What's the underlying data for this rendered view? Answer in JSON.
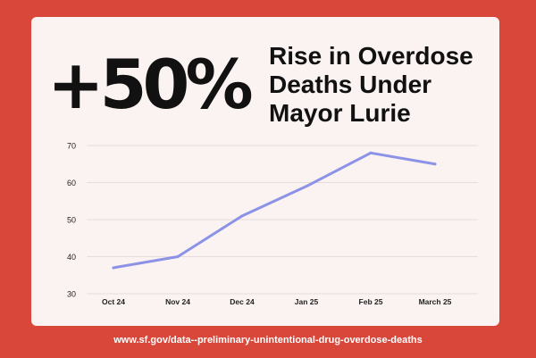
{
  "headline": {
    "stat": "+50%",
    "lines": [
      "Rise in Overdose",
      "Deaths Under",
      "Mayor Lurie"
    ]
  },
  "source": "www.sf.gov/data--preliminary-unintentional-drug-overdose-deaths",
  "colors": {
    "background": "#d9473b",
    "card": "#faf3f1",
    "line": "#8c93e6",
    "text": "#111111"
  },
  "chart_data": {
    "type": "line",
    "categories": [
      "Oct 24",
      "Nov 24",
      "Dec 24",
      "Jan 25",
      "Feb 25",
      "March 25"
    ],
    "series": [
      {
        "values": [
          37,
          40,
          51,
          59,
          68,
          65
        ]
      }
    ],
    "title": "",
    "xlabel": "",
    "ylabel": "",
    "ylim": [
      30,
      70
    ],
    "yticks": [
      30,
      40,
      50,
      60,
      70
    ],
    "grid": true,
    "legend": "none"
  }
}
